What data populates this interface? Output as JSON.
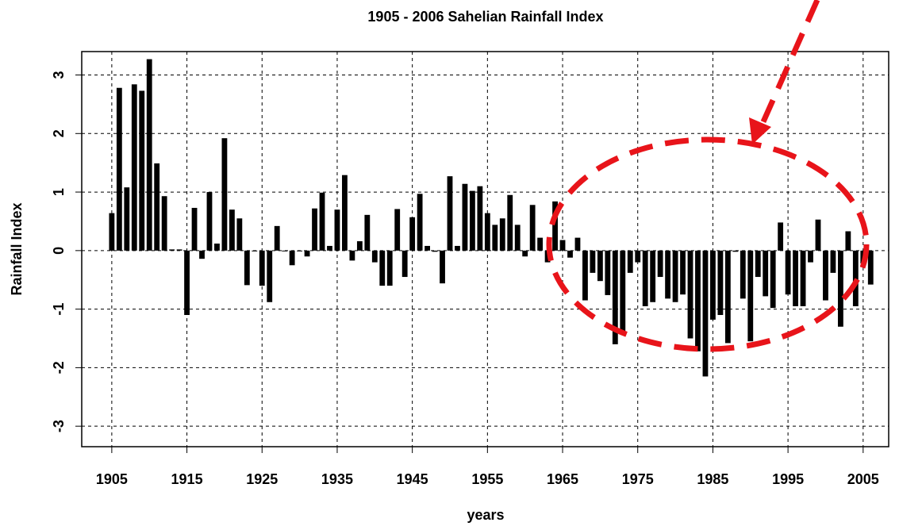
{
  "chart_data": {
    "type": "bar",
    "title": "1905 - 2006  Sahelian Rainfall Index",
    "xlabel": "years",
    "ylabel": "Rainfall Index",
    "x": [
      1905,
      1906,
      1907,
      1908,
      1909,
      1910,
      1911,
      1912,
      1913,
      1914,
      1915,
      1916,
      1917,
      1918,
      1919,
      1920,
      1921,
      1922,
      1923,
      1924,
      1925,
      1926,
      1927,
      1928,
      1929,
      1930,
      1931,
      1932,
      1933,
      1934,
      1935,
      1936,
      1937,
      1938,
      1939,
      1940,
      1941,
      1942,
      1943,
      1944,
      1945,
      1946,
      1947,
      1948,
      1949,
      1950,
      1951,
      1952,
      1953,
      1954,
      1955,
      1956,
      1957,
      1958,
      1959,
      1960,
      1961,
      1962,
      1963,
      1964,
      1965,
      1966,
      1967,
      1968,
      1969,
      1970,
      1971,
      1972,
      1973,
      1974,
      1975,
      1976,
      1977,
      1978,
      1979,
      1980,
      1981,
      1982,
      1983,
      1984,
      1985,
      1986,
      1987,
      1988,
      1989,
      1990,
      1991,
      1992,
      1993,
      1994,
      1995,
      1996,
      1997,
      1998,
      1999,
      2000,
      2001,
      2002,
      2003,
      2004,
      2005,
      2006
    ],
    "values": [
      0.64,
      2.78,
      1.08,
      2.84,
      2.73,
      3.27,
      1.49,
      0.93,
      0.02,
      0.02,
      -1.1,
      0.73,
      -0.14,
      1.0,
      0.12,
      1.92,
      0.7,
      0.55,
      -0.59,
      0.0,
      -0.6,
      -0.88,
      0.42,
      0.0,
      -0.25,
      0.0,
      -0.1,
      0.72,
      0.99,
      0.08,
      0.7,
      1.29,
      -0.17,
      0.16,
      0.61,
      -0.2,
      -0.6,
      -0.6,
      0.71,
      -0.45,
      0.57,
      0.97,
      0.08,
      -0.02,
      -0.56,
      1.27,
      0.08,
      1.14,
      1.02,
      1.1,
      0.64,
      0.44,
      0.55,
      0.95,
      0.44,
      -0.1,
      0.78,
      0.22,
      -0.2,
      0.84,
      0.18,
      -0.12,
      0.22,
      -0.85,
      -0.38,
      -0.52,
      -0.76,
      -1.6,
      -1.42,
      -0.38,
      -0.2,
      -0.95,
      -0.88,
      -0.45,
      -0.82,
      -0.88,
      -0.75,
      -1.5,
      -1.72,
      -2.15,
      -1.18,
      -1.1,
      -1.58,
      -0.02,
      -0.82,
      -1.55,
      -0.45,
      -0.78,
      -0.98,
      0.48,
      -0.75,
      -0.95,
      -0.95,
      -0.2,
      0.53,
      -0.85,
      -0.38,
      -1.3,
      0.33,
      -0.95,
      -0.22,
      -0.58
    ],
    "color": "#000000",
    "xlim": [
      1901,
      2008.4
    ],
    "xticks": [
      1905,
      1915,
      1925,
      1935,
      1945,
      1955,
      1965,
      1975,
      1985,
      1995,
      2005
    ],
    "ylim": [
      -3.35,
      3.4
    ],
    "yticks": [
      -3,
      -2,
      -1,
      0,
      1,
      2,
      3
    ],
    "grid": true
  }
}
